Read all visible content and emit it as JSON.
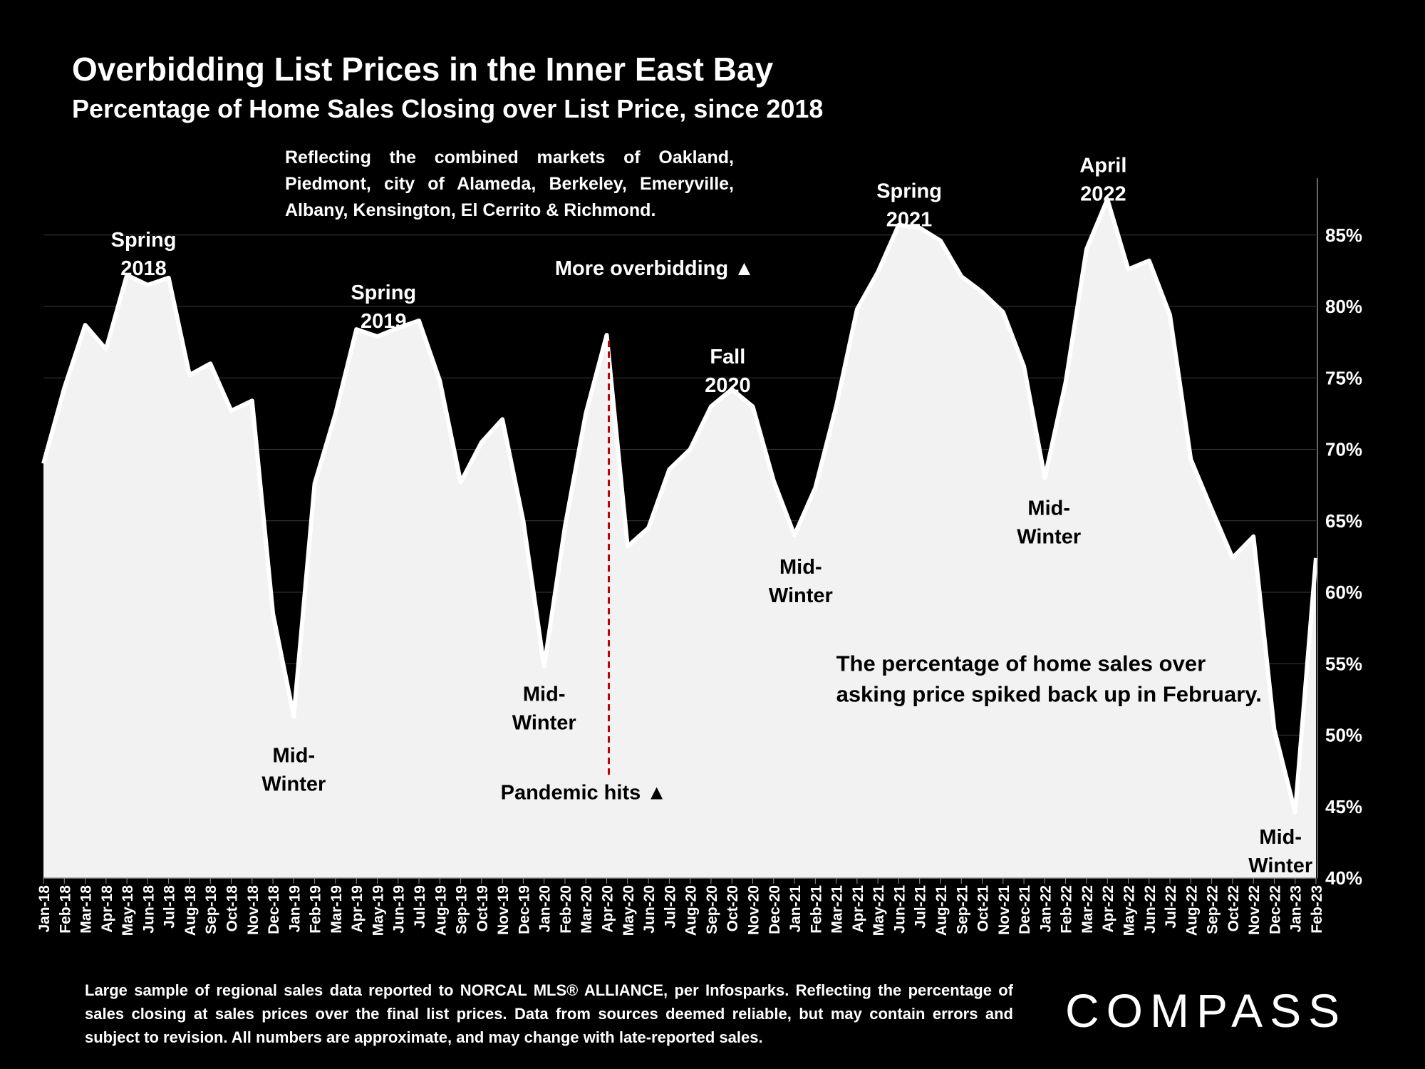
{
  "title": "Overbidding List Prices in the Inner East Bay",
  "subtitle": "Percentage of Home Sales Closing over List Price, since 2018",
  "note": "Reflecting the combined markets of Oakland, Piedmont, city of Alameda, Berkeley, Emeryville, Albany, Kensington, El Cerrito & Richmond.",
  "footnote": "Large sample of regional sales data reported to NORCAL MLS® ALLIANCE, per Infosparks. Reflecting the percentage of sales closing at sales prices over the final list prices. Data from sources deemed reliable, but may contain errors and subject to revision. All numbers are approximate, and may change with late-reported sales.",
  "logo": "COMPASS",
  "chart_data": {
    "type": "area",
    "ylim": [
      40,
      87.5
    ],
    "yticks": [
      40,
      45,
      50,
      55,
      60,
      65,
      70,
      75,
      80,
      85
    ],
    "ytick_labels": [
      "40%",
      "45%",
      "50%",
      "55%",
      "60%",
      "65%",
      "70%",
      "75%",
      "80%",
      "85%"
    ],
    "grid": true,
    "colors": {
      "fill": "#f2f2f2",
      "line": "#ffffff",
      "pandemic_line": "#c00000",
      "background": "#000000",
      "text": "#ffffff",
      "annotation_text": "#000000"
    },
    "x": [
      "Jan-18",
      "Feb-18",
      "Mar-18",
      "Apr-18",
      "May-18",
      "Jun-18",
      "Jul-18",
      "Aug-18",
      "Sep-18",
      "Oct-18",
      "Nov-18",
      "Dec-18",
      "Jan-19",
      "Feb-19",
      "Mar-19",
      "Apr-19",
      "May-19",
      "Jun-19",
      "Jul-19",
      "Aug-19",
      "Sep-19",
      "Oct-19",
      "Nov-19",
      "Dec-19",
      "Jan-20",
      "Feb-20",
      "Mar-20",
      "Apr-20",
      "May-20",
      "Jun-20",
      "Jul-20",
      "Aug-20",
      "Sep-20",
      "Oct-20",
      "Nov-20",
      "Dec-20",
      "Jan-21",
      "Feb-21",
      "Mar-21",
      "Apr-21",
      "May-21",
      "Jun-21",
      "Jul-21",
      "Aug-21",
      "Sep-21",
      "Oct-21",
      "Nov-21",
      "Dec-21",
      "Jan-22",
      "Feb-22",
      "Mar-22",
      "Apr-22",
      "May-22",
      "Jun-22",
      "Jul-22",
      "Aug-22",
      "Sep-22",
      "Oct-22",
      "Nov-22",
      "Dec-22",
      "Jan-23",
      "Feb-23"
    ],
    "values": [
      69.0,
      74.3,
      78.7,
      77.0,
      82.2,
      81.5,
      82.0,
      75.2,
      76.0,
      72.7,
      73.4,
      58.5,
      51.3,
      67.6,
      72.5,
      78.4,
      77.9,
      78.5,
      79.0,
      74.8,
      67.7,
      70.5,
      72.1,
      65.0,
      54.8,
      64.6,
      72.5,
      78.0,
      63.2,
      64.5,
      68.6,
      70.0,
      73.0,
      74.2,
      73.0,
      67.8,
      64.0,
      67.3,
      73.0,
      79.8,
      82.4,
      85.7,
      85.5,
      84.6,
      82.1,
      81.0,
      79.6,
      75.8,
      68.0,
      74.7,
      84.0,
      87.5,
      82.6,
      83.2,
      79.4,
      69.3,
      65.8,
      62.4,
      63.9,
      50.4,
      44.6,
      62.4
    ],
    "pandemic_marker": {
      "x": "Apr-20",
      "from": 78.0,
      "to": 47.2
    },
    "annotations": [
      {
        "lines": [
          "Spring",
          "2018"
        ],
        "x": 4.8,
        "y": 84.2,
        "color": "white"
      },
      {
        "lines": [
          "Spring",
          "2019"
        ],
        "x": 16.3,
        "y": 80.5,
        "color": "white"
      },
      {
        "lines": [
          "Fall",
          "2020"
        ],
        "x": 32.8,
        "y": 76.0,
        "color": "white"
      },
      {
        "lines": [
          "Spring",
          "2021"
        ],
        "x": 41.5,
        "y": 87.6,
        "color": "white"
      },
      {
        "lines": [
          "April",
          "2022"
        ],
        "x": 50.8,
        "y": 89.4,
        "color": "white"
      },
      {
        "lines": [
          "More overbidding ▲"
        ],
        "x": 29.3,
        "y": 82.2,
        "color": "white"
      },
      {
        "lines": [
          "Mid-",
          "Winter"
        ],
        "x": 12.0,
        "y": 48.1,
        "color": "black"
      },
      {
        "lines": [
          "Mid-",
          "Winter"
        ],
        "x": 24.0,
        "y": 52.4,
        "color": "black"
      },
      {
        "lines": [
          "Mid-",
          "Winter"
        ],
        "x": 36.3,
        "y": 61.3,
        "color": "black"
      },
      {
        "lines": [
          "Mid-",
          "Winter"
        ],
        "x": 48.2,
        "y": 65.4,
        "color": "black"
      },
      {
        "lines": [
          "Mid-",
          "Winter"
        ],
        "x": 59.3,
        "y": 42.4,
        "color": "black"
      },
      {
        "lines": [
          "Pandemic hits ▲"
        ],
        "x": 25.9,
        "y": 45.5,
        "color": "black"
      },
      {
        "lines": [
          "The percentage of home sales over",
          "asking price spiked back up in February."
        ],
        "x": 38.0,
        "y": 54.5,
        "color": "black",
        "anchor": "start"
      }
    ]
  }
}
